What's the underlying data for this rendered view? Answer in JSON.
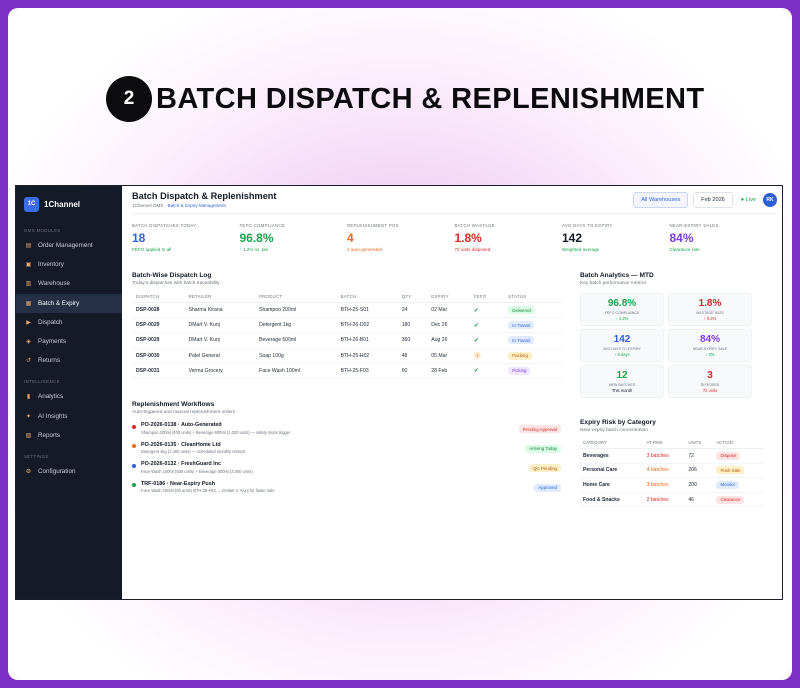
{
  "hero": {
    "number": "2",
    "title": "BATCH DISPATCH & REPLENISHMENT"
  },
  "brand": {
    "logo": "1C",
    "name": "1Channel"
  },
  "sidebar": {
    "section_oms": "OMS MODULES",
    "section_intel": "INTELLIGENCE",
    "section_settings": "SETTINGS",
    "items": [
      {
        "label": "Order Management",
        "icon": "clipboard-icon"
      },
      {
        "label": "Inventory",
        "icon": "box-icon"
      },
      {
        "label": "Warehouse",
        "icon": "warehouse-icon"
      },
      {
        "label": "Batch & Expiry",
        "icon": "batch-icon"
      },
      {
        "label": "Dispatch",
        "icon": "truck-icon"
      },
      {
        "label": "Payments",
        "icon": "payment-icon"
      },
      {
        "label": "Returns",
        "icon": "returns-icon"
      }
    ],
    "intel_items": [
      {
        "label": "Analytics",
        "icon": "chart-icon"
      },
      {
        "label": "AI Insights",
        "icon": "sparkle-icon"
      },
      {
        "label": "Reports",
        "icon": "report-icon"
      }
    ],
    "settings_items": [
      {
        "label": "Configuration",
        "icon": "gear-icon"
      }
    ]
  },
  "header": {
    "title": "Batch Dispatch & Replenishment",
    "crumb_root": "1Channel OMS · ",
    "crumb_current": "Batch & Expiry Management",
    "warehouse_chip": "All Warehouses",
    "period_chip": "Feb 2026",
    "live": "● Live",
    "avatar": "RK"
  },
  "kpis": [
    {
      "label": "BATCH DISPATCHES TODAY",
      "value": "18",
      "sub": "FEFO applied to all",
      "color": "#2f5fd6",
      "sub_color": "#16a34a"
    },
    {
      "label": "FEFO COMPLIANCE",
      "value": "96.8%",
      "sub": "↑ 1.2% vs Jan",
      "color": "#16a34a",
      "sub_color": "#16a34a"
    },
    {
      "label": "REPLENISHMENT POS",
      "value": "4",
      "sub": "2 auto-generated",
      "color": "#ea6a1a",
      "sub_color": "#ea6a1a"
    },
    {
      "label": "BATCH WASTAGE",
      "value": "1.8%",
      "sub": "72 units disposed",
      "color": "#dc2626",
      "sub_color": "#dc2626"
    },
    {
      "label": "AVG DAYS TO EXPIRY",
      "value": "142",
      "sub": "Weighted average",
      "color": "#111827",
      "sub_color": "#16a34a"
    },
    {
      "label": "NEAR-EXPIRY SALES",
      "value": "84%",
      "sub": "Clearance rate",
      "color": "#7c3aed",
      "sub_color": "#16a34a"
    }
  ],
  "dispatch_log": {
    "title": "Batch-Wise Dispatch Log",
    "subtitle": "Today's dispatches with batch traceability",
    "columns": [
      "DISPATCH",
      "RETAILER",
      "PRODUCT",
      "BATCH",
      "QTY",
      "EXPIRY",
      "FEFO",
      "STATUS"
    ],
    "rows": [
      {
        "id": "DSP-0028",
        "retailer": "Sharma Kirana",
        "product": "Shampoo 200ml",
        "batch": "BTH-25-S01",
        "qty": "24",
        "expiry": "02 Mar",
        "fefo": "✔",
        "status": "Delivered",
        "status_bg": "#dcfce7",
        "status_fg": "#15803d"
      },
      {
        "id": "DSP-0029",
        "retailer": "DMart V. Kunj",
        "product": "Detergent 1kg",
        "batch": "BTH-26-D02",
        "qty": "180",
        "expiry": "Dec 26",
        "fefo": "✔",
        "status": "In Transit",
        "status_bg": "#e0ebff",
        "status_fg": "#2f5fd6"
      },
      {
        "id": "DSP-0029",
        "retailer": "DMart V. Kunj",
        "product": "Beverage 500ml",
        "batch": "BTH-26-B01",
        "qty": "360",
        "expiry": "Aug 26",
        "fefo": "✔",
        "status": "In Transit",
        "status_bg": "#e0ebff",
        "status_fg": "#2f5fd6"
      },
      {
        "id": "DSP-0030",
        "retailer": "Patel General",
        "product": "Soap 100g",
        "batch": "BTH-25-H02",
        "qty": "48",
        "expiry": "05 Mar",
        "fefo": "!",
        "status": "Packing",
        "status_bg": "#fdf0c7",
        "status_fg": "#b45309"
      },
      {
        "id": "DSP-0031",
        "retailer": "Verma Grocery",
        "product": "Face Wash 100ml",
        "batch": "BTH-25-F03",
        "qty": "60",
        "expiry": "28 Feb",
        "fefo": "✔",
        "status": "Picking",
        "status_bg": "#efe5ff",
        "status_fg": "#7c3aed"
      }
    ]
  },
  "workflows": {
    "title": "Replenishment Workflows",
    "subtitle": "Auto-triggered and manual replenishment orders",
    "items": [
      {
        "title": "PO-2026-0138 · Auto-Generated",
        "sub": "Shampoo 200ml (400 units) + Beverage 500ml (1,000 units) — safety stock trigger",
        "badge": "Pending Approval",
        "dot": "#dc2626",
        "badge_bg": "#fde4e4",
        "badge_fg": "#dc2626"
      },
      {
        "title": "PO-2026-0135 · CleanHome Ltd",
        "sub": "Detergent 1kg (2,400 units) — scheduled monthly restock",
        "badge": "Arriving Today",
        "dot": "#ea6a1a",
        "badge_bg": "#dcfce7",
        "badge_fg": "#15803d"
      },
      {
        "title": "PO-2026-0132 · FreshGuard Inc",
        "sub": "Face Wash 100ml (600 units) + Beverage 500ml (3,000 units)",
        "badge": "QC Pending",
        "dot": "#2f5fd6",
        "badge_bg": "#fdf0c7",
        "badge_fg": "#b45309"
      },
      {
        "title": "TRF-0186 · Near-Expiry Push",
        "sub": "Face Wash 100ml (60 units) BTH-25-F03 → D-Mart V. Kunj for faster sale",
        "badge": "Approved",
        "dot": "#16a34a",
        "badge_bg": "#e0ebff",
        "badge_fg": "#2f5fd6"
      }
    ]
  },
  "analytics": {
    "title": "Batch Analytics — MTD",
    "subtitle": "Key batch performance metrics",
    "cards": [
      {
        "value": "96.8%",
        "label": "FEFO COMPLIANCE",
        "sub": "↑ 1.2%",
        "color": "#16a34a",
        "sub_color": "#16a34a"
      },
      {
        "value": "1.8%",
        "label": "WASTAGE RATE",
        "sub": "↑ 0.2%",
        "color": "#dc2626",
        "sub_color": "#dc2626"
      },
      {
        "value": "142",
        "label": "AVG DAYS TO EXPIRY",
        "sub": "↑ 8 days",
        "color": "#2f5fd6",
        "sub_color": "#16a34a"
      },
      {
        "value": "84%",
        "label": "NEAR-EXPIRY SALE",
        "sub": "↑ 3%",
        "color": "#7c3aed",
        "sub_color": "#16a34a"
      },
      {
        "value": "12",
        "label": "NEW BATCHES",
        "sub": "This month",
        "color": "#16a34a",
        "sub_color": "#111827"
      },
      {
        "value": "3",
        "label": "DISPOSED",
        "sub": "72 units",
        "color": "#dc2626",
        "sub_color": "#dc2626"
      }
    ]
  },
  "expiry": {
    "title": "Expiry Risk by Category",
    "subtitle": "Near-expiry batch concentration",
    "columns": [
      "CATEGORY",
      "AT RISK",
      "UNITS",
      "ACTION"
    ],
    "rows": [
      {
        "category": "Beverages",
        "risk": "3 batches",
        "units": "72",
        "action": "Dispose",
        "risk_color": "#dc2626",
        "bg": "#fde4e4",
        "fg": "#dc2626"
      },
      {
        "category": "Personal Care",
        "risk": "4 batches",
        "units": "206",
        "action": "Push Sale",
        "risk_color": "#ea6a1a",
        "bg": "#fdf0c7",
        "fg": "#b45309"
      },
      {
        "category": "Home Care",
        "risk": "3 batches",
        "units": "200",
        "action": "Monitor",
        "risk_color": "#ea6a1a",
        "bg": "#e0ebff",
        "fg": "#2f5fd6"
      },
      {
        "category": "Food & Snacks",
        "risk": "2 batches",
        "units": "46",
        "action": "Clearance",
        "risk_color": "#dc2626",
        "bg": "#fde4e4",
        "fg": "#dc2626"
      }
    ]
  }
}
